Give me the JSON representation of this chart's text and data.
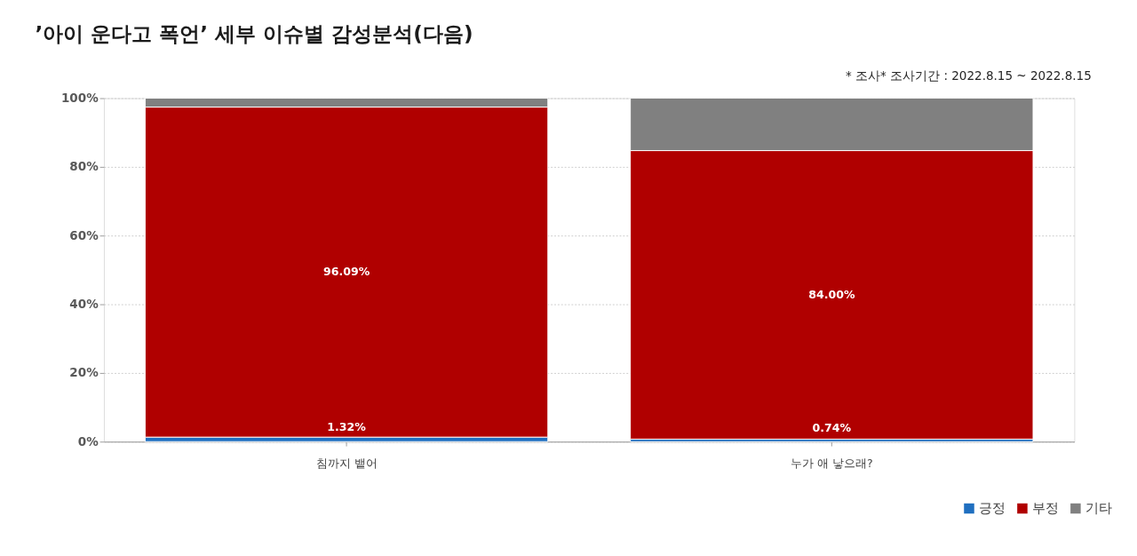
{
  "chart_data": {
    "type": "bar",
    "stacked": true,
    "title": "’아이 운다고 폭언’ 세부 이슈별 감성분석(다음)",
    "subtitle": "* 조사* 조사기간 : 2022.8.15 ~ 2022.8.15",
    "categories": [
      "침까지 뱉어",
      "누가 애 낳으래?"
    ],
    "series": [
      {
        "name": "긍정",
        "color": "#1f6fc0",
        "values": [
          1.32,
          0.74
        ],
        "value_labels": [
          "1.32%",
          "0.74%"
        ]
      },
      {
        "name": "부정",
        "color": "#b00000",
        "values": [
          96.09,
          84.0
        ],
        "value_labels": [
          "96.09%",
          "84.00%"
        ]
      },
      {
        "name": "기타",
        "color": "#808080",
        "values": [
          2.6,
          15.3
        ],
        "value_labels": [
          null,
          null
        ]
      }
    ],
    "ylim": [
      0,
      100
    ],
    "yticks": [
      {
        "value": 0,
        "label": "0%"
      },
      {
        "value": 20,
        "label": "20%"
      },
      {
        "value": 40,
        "label": "40%"
      },
      {
        "value": 60,
        "label": "60%"
      },
      {
        "value": 80,
        "label": "80%"
      },
      {
        "value": 100,
        "label": "100%"
      }
    ],
    "grid": "y",
    "legend": "bottom right"
  }
}
